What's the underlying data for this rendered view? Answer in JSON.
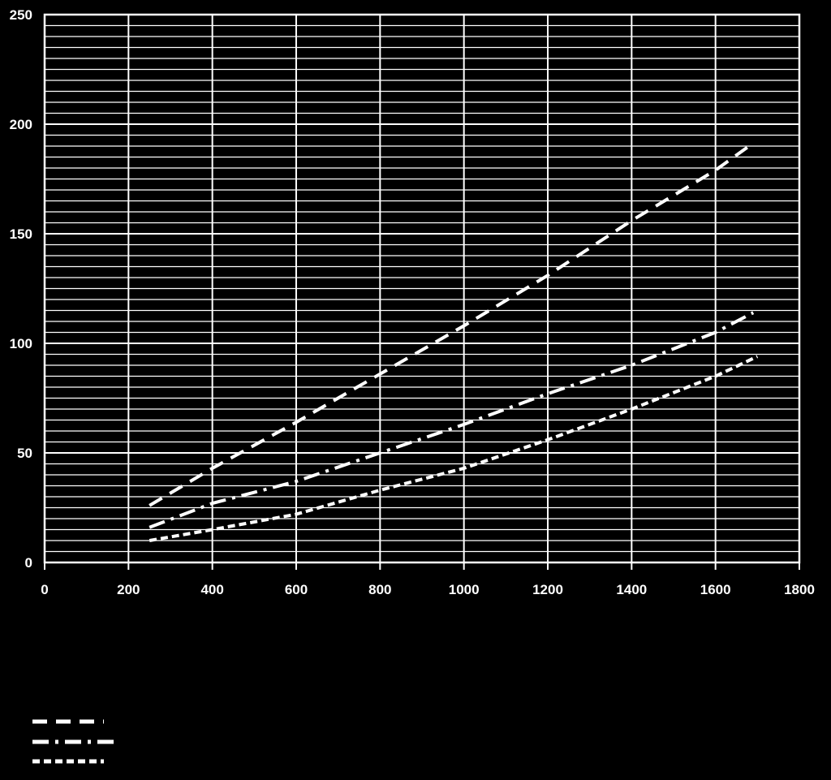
{
  "chart_data": {
    "type": "line",
    "title": "",
    "xlabel": "",
    "ylabel": "",
    "xlim": [
      0,
      1800
    ],
    "ylim": [
      0,
      250
    ],
    "x_ticks": [
      0,
      200,
      400,
      600,
      800,
      1000,
      1200,
      1400,
      1600,
      1800
    ],
    "y_ticks": [
      0,
      50,
      100,
      150,
      200,
      250
    ],
    "grid": {
      "vertical": true,
      "horizontal": true,
      "horizontal_minor": 10
    },
    "legend_position": "bottom-left",
    "colors": {
      "background": "#000000",
      "foreground": "#ffffff"
    },
    "series": [
      {
        "style": "dashed",
        "points": [
          [
            250,
            26
          ],
          [
            400,
            43
          ],
          [
            600,
            64
          ],
          [
            800,
            86
          ],
          [
            1000,
            108
          ],
          [
            1200,
            131
          ],
          [
            1400,
            156
          ],
          [
            1600,
            179
          ],
          [
            1680,
            190
          ]
        ]
      },
      {
        "style": "dash-dot",
        "points": [
          [
            250,
            16
          ],
          [
            400,
            27
          ],
          [
            600,
            37
          ],
          [
            800,
            50
          ],
          [
            1000,
            63
          ],
          [
            1200,
            77
          ],
          [
            1400,
            90
          ],
          [
            1600,
            105
          ],
          [
            1690,
            114
          ]
        ]
      },
      {
        "style": "dotted",
        "points": [
          [
            250,
            10
          ],
          [
            400,
            15
          ],
          [
            600,
            22
          ],
          [
            800,
            33
          ],
          [
            1000,
            43
          ],
          [
            1200,
            56
          ],
          [
            1400,
            70
          ],
          [
            1600,
            85
          ],
          [
            1700,
            94
          ]
        ]
      }
    ]
  }
}
